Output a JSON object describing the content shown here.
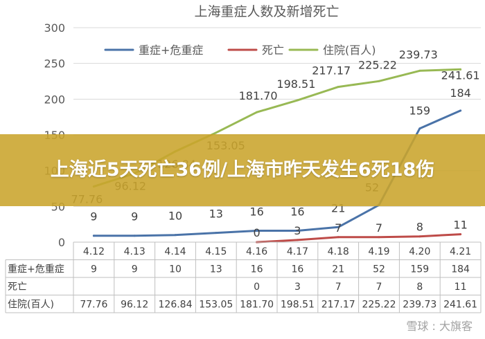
{
  "chart_data": {
    "type": "line",
    "title": "上海重症人数及新增死亡",
    "categories": [
      "4.12",
      "4.13",
      "4.14",
      "4.15",
      "4.16",
      "4.17",
      "4.18",
      "4.19",
      "4.20",
      "4.21"
    ],
    "ylim": [
      0,
      300
    ],
    "yticks": [
      0,
      50,
      100,
      150,
      200,
      250,
      300
    ],
    "grid": true,
    "legend_position": "top",
    "series": [
      {
        "name": "重症+危重症",
        "color": "#4a73a8",
        "values": [
          9,
          9,
          10,
          13,
          16,
          16,
          21,
          52,
          159,
          184
        ]
      },
      {
        "name": "死亡",
        "color": "#be4b48",
        "values": [
          null,
          null,
          null,
          null,
          0,
          3,
          7,
          7,
          8,
          11
        ]
      },
      {
        "name": "住院(百人)",
        "color": "#98b954",
        "values": [
          77.76,
          96.12,
          126.84,
          153.05,
          181.7,
          198.51,
          217.17,
          225.22,
          239.73,
          241.61
        ]
      }
    ],
    "table_rows": [
      {
        "label": "重症+危重症",
        "cells": [
          "9",
          "9",
          "10",
          "13",
          "16",
          "16",
          "21",
          "52",
          "159",
          "184"
        ]
      },
      {
        "label": "死亡",
        "cells": [
          "",
          "",
          "",
          "",
          "0",
          "3",
          "7",
          "7",
          "8",
          "11"
        ]
      },
      {
        "label": "住院(百人)",
        "cells": [
          "77.76",
          "96.12",
          "126.84",
          "153.05",
          "181.70",
          "198.51",
          "217.17",
          "225.22",
          "239.73",
          "241.61"
        ]
      }
    ]
  },
  "banner": {
    "text": "上海近5天死亡36例/上海市昨天发生6死18伤",
    "color": "#c9a42b"
  },
  "watermark": "雪球 : 大旗客"
}
